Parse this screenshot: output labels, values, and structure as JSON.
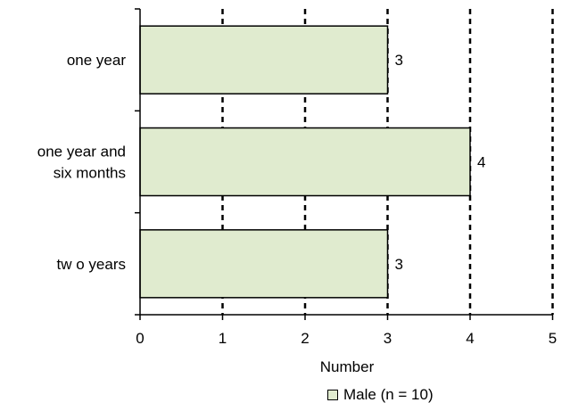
{
  "chart_data": {
    "type": "bar",
    "orientation": "horizontal",
    "categories": [
      "one year",
      "one year and six months",
      "two years"
    ],
    "category_lines": [
      [
        "one year"
      ],
      [
        "one year and",
        "six months"
      ],
      [
        "tw o years"
      ]
    ],
    "series": [
      {
        "name": "Male (n = 10)",
        "values": [
          3,
          4,
          3
        ]
      }
    ],
    "data_labels": [
      "3",
      "4",
      "3"
    ],
    "xlabel": "Number",
    "xlim": [
      0,
      5
    ],
    "xticks": [
      "0",
      "1",
      "2",
      "3",
      "4",
      "5"
    ],
    "grid": "vertical dashed",
    "legend_position": "bottom",
    "colors": {
      "bar_fill": "#E0EBCF",
      "bar_stroke": "#000000",
      "grid": "#000000"
    }
  }
}
